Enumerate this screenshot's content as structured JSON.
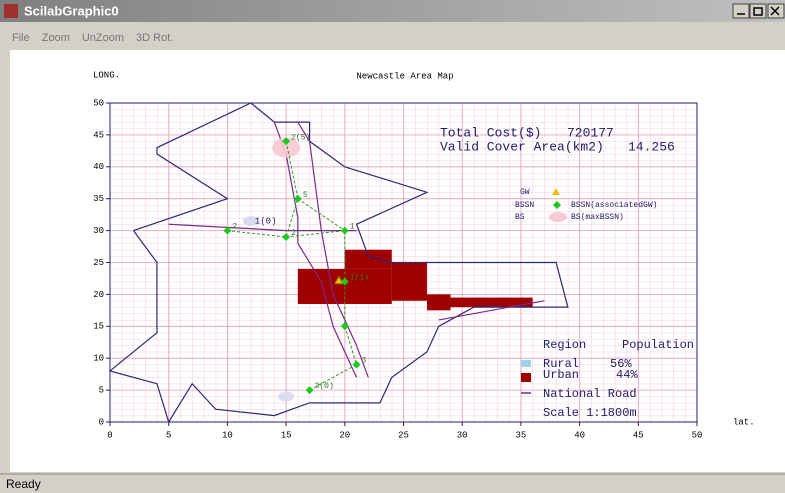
{
  "window": {
    "title": "ScilabGraphic0",
    "menu": [
      "File",
      "Zoom",
      "UnZoom",
      "3D Rot."
    ],
    "status": "Ready"
  },
  "chart_data": {
    "type": "map",
    "title": "Newcastle Area Map",
    "ylabel": "LONG.",
    "xlabel": "lat.",
    "xlim": [
      0,
      50
    ],
    "ylim": [
      0,
      50
    ],
    "xticks": [
      0,
      5,
      10,
      15,
      20,
      25,
      30,
      35,
      40,
      45,
      50
    ],
    "yticks": [
      0,
      5,
      10,
      15,
      20,
      25,
      30,
      35,
      40,
      45,
      50
    ],
    "grid": true,
    "annotations": {
      "total_cost_label": "Total Cost($)",
      "total_cost": 720177,
      "cover_label": "Valid Cover Area(km2)",
      "cover": 14.256
    },
    "boundary": {
      "color": "#2a2a7a",
      "x": [
        2,
        10,
        4,
        4,
        12,
        14,
        17,
        17,
        20,
        27,
        21,
        22,
        24,
        38,
        39,
        31,
        28,
        27,
        24,
        23,
        20,
        17,
        14,
        9,
        7,
        5,
        4,
        0,
        4,
        4,
        4,
        2
      ],
      "y": [
        30,
        35,
        42,
        43,
        50,
        47,
        47,
        44,
        40,
        36,
        31,
        26,
        25,
        25,
        18,
        18,
        15,
        11,
        7,
        3,
        3,
        3,
        1,
        2,
        6,
        0,
        6,
        8,
        14,
        20,
        25,
        30
      ]
    },
    "roads": {
      "color": "#7a2a8a",
      "x": [
        14,
        15,
        16,
        16,
        18,
        19,
        21,
        null,
        16,
        17,
        18,
        19,
        21,
        22,
        null,
        5,
        15,
        21,
        null,
        28,
        37
      ],
      "y": [
        47,
        42,
        32,
        28,
        22,
        15,
        7,
        null,
        47,
        44,
        30,
        20,
        12,
        7,
        null,
        31,
        30,
        30,
        null,
        16,
        19
      ]
    },
    "urban": {
      "color": "#a00000",
      "x0": [
        16,
        20,
        24,
        27,
        29
      ],
      "x1": [
        24,
        24,
        27,
        29,
        36
      ],
      "y0": [
        18.5,
        24,
        19,
        17.5,
        18
      ],
      "y1": [
        24,
        27,
        25,
        20,
        19.5
      ]
    },
    "links": {
      "color": "#2a9a2a",
      "x": [
        15,
        16,
        15,
        10,
        null,
        16,
        20,
        null,
        15,
        20,
        20,
        20,
        21,
        17
      ],
      "y": [
        44,
        35,
        29,
        30,
        null,
        35,
        30,
        null,
        29,
        30,
        22,
        15,
        9,
        5
      ]
    },
    "nodes": {
      "color": "#1ec81e",
      "x": [
        15,
        16,
        15,
        10,
        20,
        20,
        20,
        21,
        17
      ],
      "y": [
        44,
        35,
        29,
        30,
        30,
        22,
        15,
        9,
        5
      ],
      "labels": [
        "2(5)",
        "5",
        "2",
        "2",
        "1",
        "1(1)",
        null,
        "3",
        "3(0)"
      ]
    },
    "gateway": {
      "color": "#e8c000",
      "x": 19.5,
      "y": 22
    },
    "bs": {
      "x": [
        15,
        12,
        15
      ],
      "y": [
        43,
        31.5,
        4
      ],
      "labels": [
        null,
        "1(0)",
        null
      ]
    },
    "legend": {
      "gw": "GW",
      "bssn": "BSSN",
      "bssn_gw": "BSSN(associatedGW)",
      "bs": "BS",
      "bs_max": "BS(maxBSSN)",
      "region": "Region",
      "population": "Population",
      "rural": "Rural",
      "rural_pop": "56%",
      "urban": "Urban",
      "urban_pop": "44%",
      "road": "National Road",
      "scale": "Scale 1:1800m"
    }
  }
}
